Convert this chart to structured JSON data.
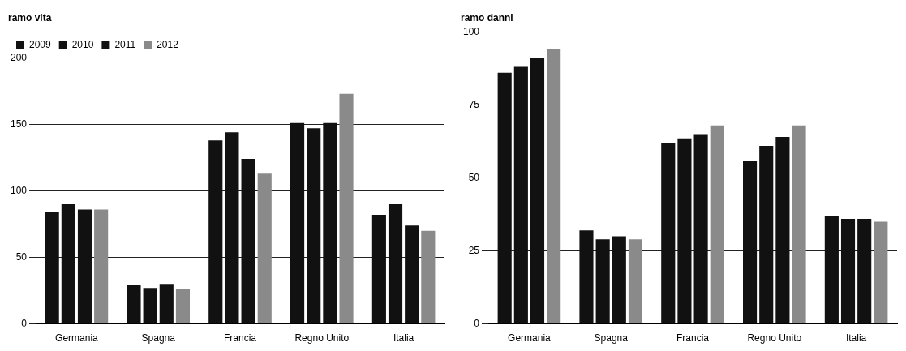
{
  "chart_data": [
    {
      "type": "bar",
      "title": "ramo vita",
      "categories": [
        "Germania",
        "Spagna",
        "Francia",
        "Regno Unito",
        "Italia"
      ],
      "ylim": [
        0,
        200
      ],
      "yticks": [
        0,
        50,
        100,
        150,
        200
      ],
      "grid": "y",
      "legend": "top left",
      "series": [
        {
          "name": "2009",
          "color": "#111111",
          "values": [
            84,
            29,
            138,
            151,
            82
          ]
        },
        {
          "name": "2010",
          "color": "#111111",
          "values": [
            90,
            27,
            144,
            147,
            90
          ]
        },
        {
          "name": "2011",
          "color": "#111111",
          "values": [
            86,
            30,
            124,
            151,
            74
          ]
        },
        {
          "name": "2012",
          "color": "#8a8a8a",
          "values": [
            86,
            26,
            113,
            173,
            70
          ]
        }
      ]
    },
    {
      "type": "bar",
      "title": "ramo danni",
      "categories": [
        "Germania",
        "Spagna",
        "Francia",
        "Regno Unito",
        "Italia"
      ],
      "ylim": [
        0,
        100
      ],
      "yticks": [
        0,
        25,
        50,
        75,
        100
      ],
      "grid": "y",
      "series": [
        {
          "color": "#111111",
          "values": [
            86,
            32,
            62,
            56,
            37
          ]
        },
        {
          "color": "#111111",
          "values": [
            88,
            29,
            63.5,
            61,
            36
          ]
        },
        {
          "color": "#111111",
          "values": [
            91,
            30,
            65,
            64,
            36
          ]
        },
        {
          "color": "#8a8a8a",
          "values": [
            94,
            29,
            68,
            68,
            35
          ]
        }
      ]
    }
  ]
}
